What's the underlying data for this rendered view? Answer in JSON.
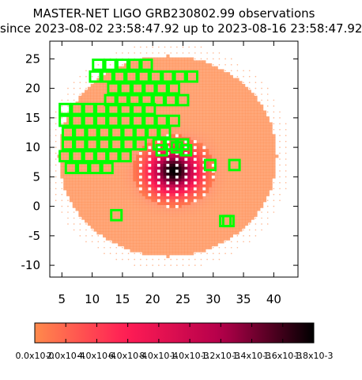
{
  "chart_data": {
    "type": "heatmap",
    "title": "MASTER-NET LIGO GRB230802.99 observations",
    "subtitle": "since 2023-08-02 23:58:47.92 up to 2023-08-16 23:58:47.92",
    "xlim": [
      3,
      44
    ],
    "ylim": [
      -12,
      28
    ],
    "x_ticks": [
      5,
      10,
      15,
      20,
      25,
      30,
      35,
      40
    ],
    "y_ticks": [
      -10,
      -5,
      0,
      5,
      10,
      15,
      20,
      25
    ],
    "colorbar": {
      "range": [
        0,
        0.0018
      ],
      "tick_labels": [
        "0.0x10-0",
        "2.0x10-4",
        "4.0x10-4",
        "6.0x10-4",
        "8.0x10-4",
        "1.0x10-3",
        "1.2x10-3",
        "1.4x10-3",
        "1.6x10-3",
        "1.8x10-3"
      ],
      "colors": [
        "#ff8a4c",
        "#ff1b55",
        "#b4004a",
        "#000000"
      ]
    },
    "probability_region": {
      "shape": "ellipse",
      "center": [
        22.5,
        8.5
      ],
      "radii": [
        18,
        17
      ],
      "hot_center": [
        23.5,
        6
      ],
      "peak": 0.0018
    },
    "fields_color": "#00ff00",
    "fields": [
      [
        11,
        24
      ],
      [
        13,
        24
      ],
      [
        15,
        24
      ],
      [
        17,
        24
      ],
      [
        19,
        24
      ],
      [
        10.5,
        22
      ],
      [
        12.5,
        22
      ],
      [
        14.5,
        22
      ],
      [
        16.5,
        22
      ],
      [
        18.5,
        22
      ],
      [
        20.5,
        22
      ],
      [
        22.5,
        22
      ],
      [
        24.5,
        22
      ],
      [
        26.5,
        22
      ],
      [
        13.5,
        20
      ],
      [
        15.5,
        20
      ],
      [
        17.5,
        20
      ],
      [
        19.5,
        20
      ],
      [
        21.5,
        20
      ],
      [
        23.5,
        20
      ],
      [
        13,
        18
      ],
      [
        15,
        18
      ],
      [
        17,
        18
      ],
      [
        19,
        18
      ],
      [
        21,
        18
      ],
      [
        23,
        18
      ],
      [
        25,
        18
      ],
      [
        5.5,
        16.5
      ],
      [
        7.5,
        16.5
      ],
      [
        9.5,
        16.5
      ],
      [
        11.5,
        16.5
      ],
      [
        13.5,
        16.5
      ],
      [
        15.5,
        16.5
      ],
      [
        17.5,
        16.5
      ],
      [
        19.5,
        16.5
      ],
      [
        5.5,
        14.5
      ],
      [
        7.5,
        14.5
      ],
      [
        9.5,
        14.5
      ],
      [
        11.5,
        14.5
      ],
      [
        13.5,
        14.5
      ],
      [
        15.5,
        14.5
      ],
      [
        17.5,
        14.5
      ],
      [
        19.5,
        14.5
      ],
      [
        21.5,
        14.5
      ],
      [
        23.5,
        14.5
      ],
      [
        6,
        12.5
      ],
      [
        8,
        12.5
      ],
      [
        10,
        12.5
      ],
      [
        12,
        12.5
      ],
      [
        14,
        12.5
      ],
      [
        16,
        12.5
      ],
      [
        18,
        12.5
      ],
      [
        20,
        12.5
      ],
      [
        22,
        12.5
      ],
      [
        6,
        10.5
      ],
      [
        8,
        10.5
      ],
      [
        10,
        10.5
      ],
      [
        12,
        10.5
      ],
      [
        14,
        10.5
      ],
      [
        16,
        10.5
      ],
      [
        18,
        10.5
      ],
      [
        21,
        10.5
      ],
      [
        23,
        10.5
      ],
      [
        25,
        10.5
      ],
      [
        5.5,
        8.5
      ],
      [
        7.5,
        8.5
      ],
      [
        9.5,
        8.5
      ],
      [
        11.5,
        8.5
      ],
      [
        13.5,
        8.5
      ],
      [
        15.5,
        8.5
      ],
      [
        6.5,
        6.5
      ],
      [
        8.5,
        6.5
      ],
      [
        10.5,
        6.5
      ],
      [
        12.5,
        6.5
      ],
      [
        21.5,
        9.5
      ],
      [
        24,
        10
      ],
      [
        25.5,
        9.5
      ],
      [
        29.5,
        7
      ],
      [
        33.5,
        7
      ],
      [
        14,
        -1.5
      ],
      [
        32.5,
        -2.5
      ],
      [
        32,
        -2.5
      ]
    ]
  }
}
